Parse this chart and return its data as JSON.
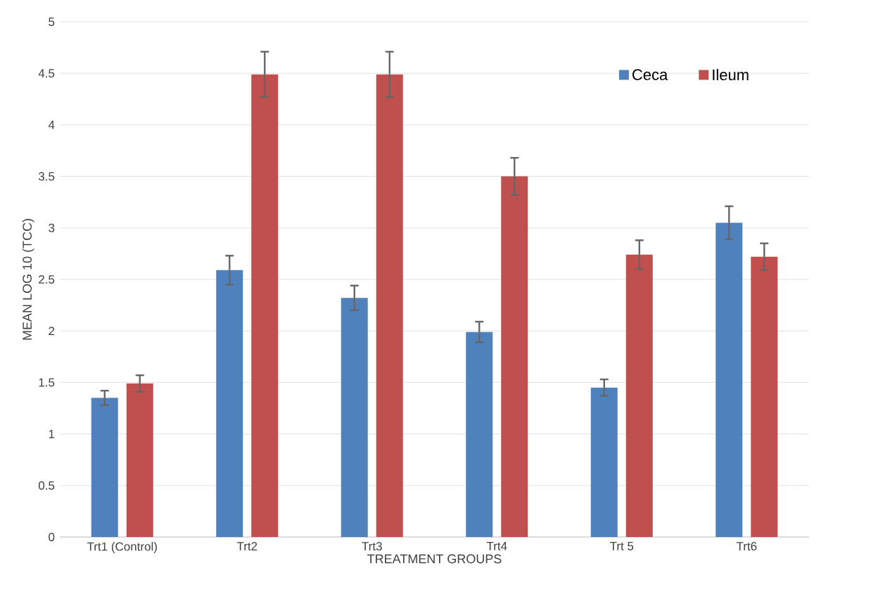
{
  "chart_data": {
    "type": "bar",
    "xlabel": "TREATMENT GROUPS",
    "ylabel": "MEAN LOG 10 (TCC)",
    "categories": [
      "Trt1 (Control)",
      "Trt2",
      "Trt3",
      "Trt4",
      "Trt 5",
      "Trt6"
    ],
    "series": [
      {
        "name": "Ceca",
        "color": "#4f81bd",
        "values": [
          1.35,
          2.59,
          2.32,
          1.99,
          1.45,
          3.05
        ],
        "errors": [
          0.07,
          0.14,
          0.12,
          0.1,
          0.08,
          0.16
        ]
      },
      {
        "name": "Ileum",
        "color": "#c0504d",
        "values": [
          1.49,
          4.49,
          4.49,
          3.5,
          2.74,
          2.72
        ],
        "errors": [
          0.08,
          0.22,
          0.22,
          0.18,
          0.14,
          0.13
        ]
      }
    ],
    "ylim": [
      0,
      5
    ],
    "yticks": [
      0,
      0.5,
      1,
      1.5,
      2,
      2.5,
      3,
      3.5,
      4,
      4.5,
      5
    ],
    "grid": "y",
    "legend": "top right"
  }
}
